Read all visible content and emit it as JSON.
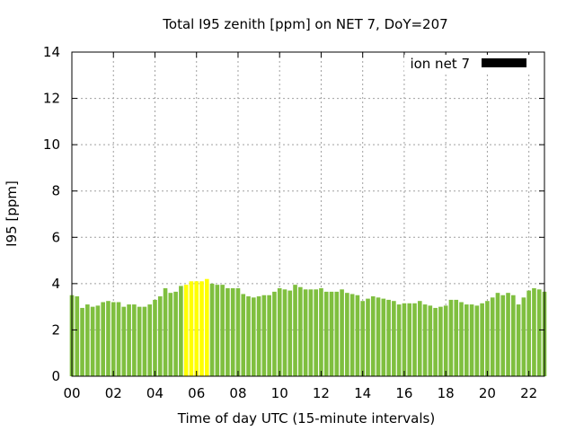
{
  "chart_data": {
    "type": "bar",
    "title": "Total I95 zenith [ppm] on NET 7, DoY=207",
    "xlabel": "Time of day UTC (15-minute intervals)",
    "ylabel": "I95 [ppm]",
    "xlim": [
      0,
      22.75
    ],
    "ylim": [
      0,
      14
    ],
    "x_ticks": [
      "00",
      "02",
      "04",
      "06",
      "08",
      "10",
      "12",
      "14",
      "16",
      "18",
      "20",
      "22"
    ],
    "y_ticks": [
      "0",
      "2",
      "4",
      "6",
      "8",
      "10",
      "12",
      "14"
    ],
    "grid": true,
    "legend_position": "top-right",
    "series": [
      {
        "name": "ion net 7",
        "legend_color": "#000000",
        "bar_color": "#7fbf3f",
        "highlight_color": "#ffff00",
        "highlight_range": [
          5.5,
          6.5
        ],
        "values": [
          3.5,
          3.45,
          2.95,
          3.1,
          3.0,
          3.05,
          3.2,
          3.25,
          3.2,
          3.2,
          3.0,
          3.1,
          3.1,
          3.0,
          3.0,
          3.1,
          3.3,
          3.45,
          3.8,
          3.6,
          3.65,
          3.9,
          3.95,
          4.1,
          4.1,
          4.1,
          4.2,
          4.0,
          3.95,
          3.95,
          3.8,
          3.8,
          3.8,
          3.55,
          3.45,
          3.4,
          3.45,
          3.5,
          3.5,
          3.65,
          3.8,
          3.75,
          3.7,
          3.95,
          3.85,
          3.75,
          3.75,
          3.75,
          3.8,
          3.65,
          3.65,
          3.65,
          3.75,
          3.6,
          3.55,
          3.5,
          3.25,
          3.35,
          3.45,
          3.4,
          3.35,
          3.3,
          3.25,
          3.1,
          3.15,
          3.15,
          3.15,
          3.25,
          3.1,
          3.05,
          2.95,
          3.0,
          3.05,
          3.3,
          3.3,
          3.2,
          3.1,
          3.1,
          3.05,
          3.15,
          3.25,
          3.4,
          3.6,
          3.5,
          3.6,
          3.5,
          3.1,
          3.4,
          3.7,
          3.8,
          3.75,
          3.65
        ]
      }
    ]
  }
}
